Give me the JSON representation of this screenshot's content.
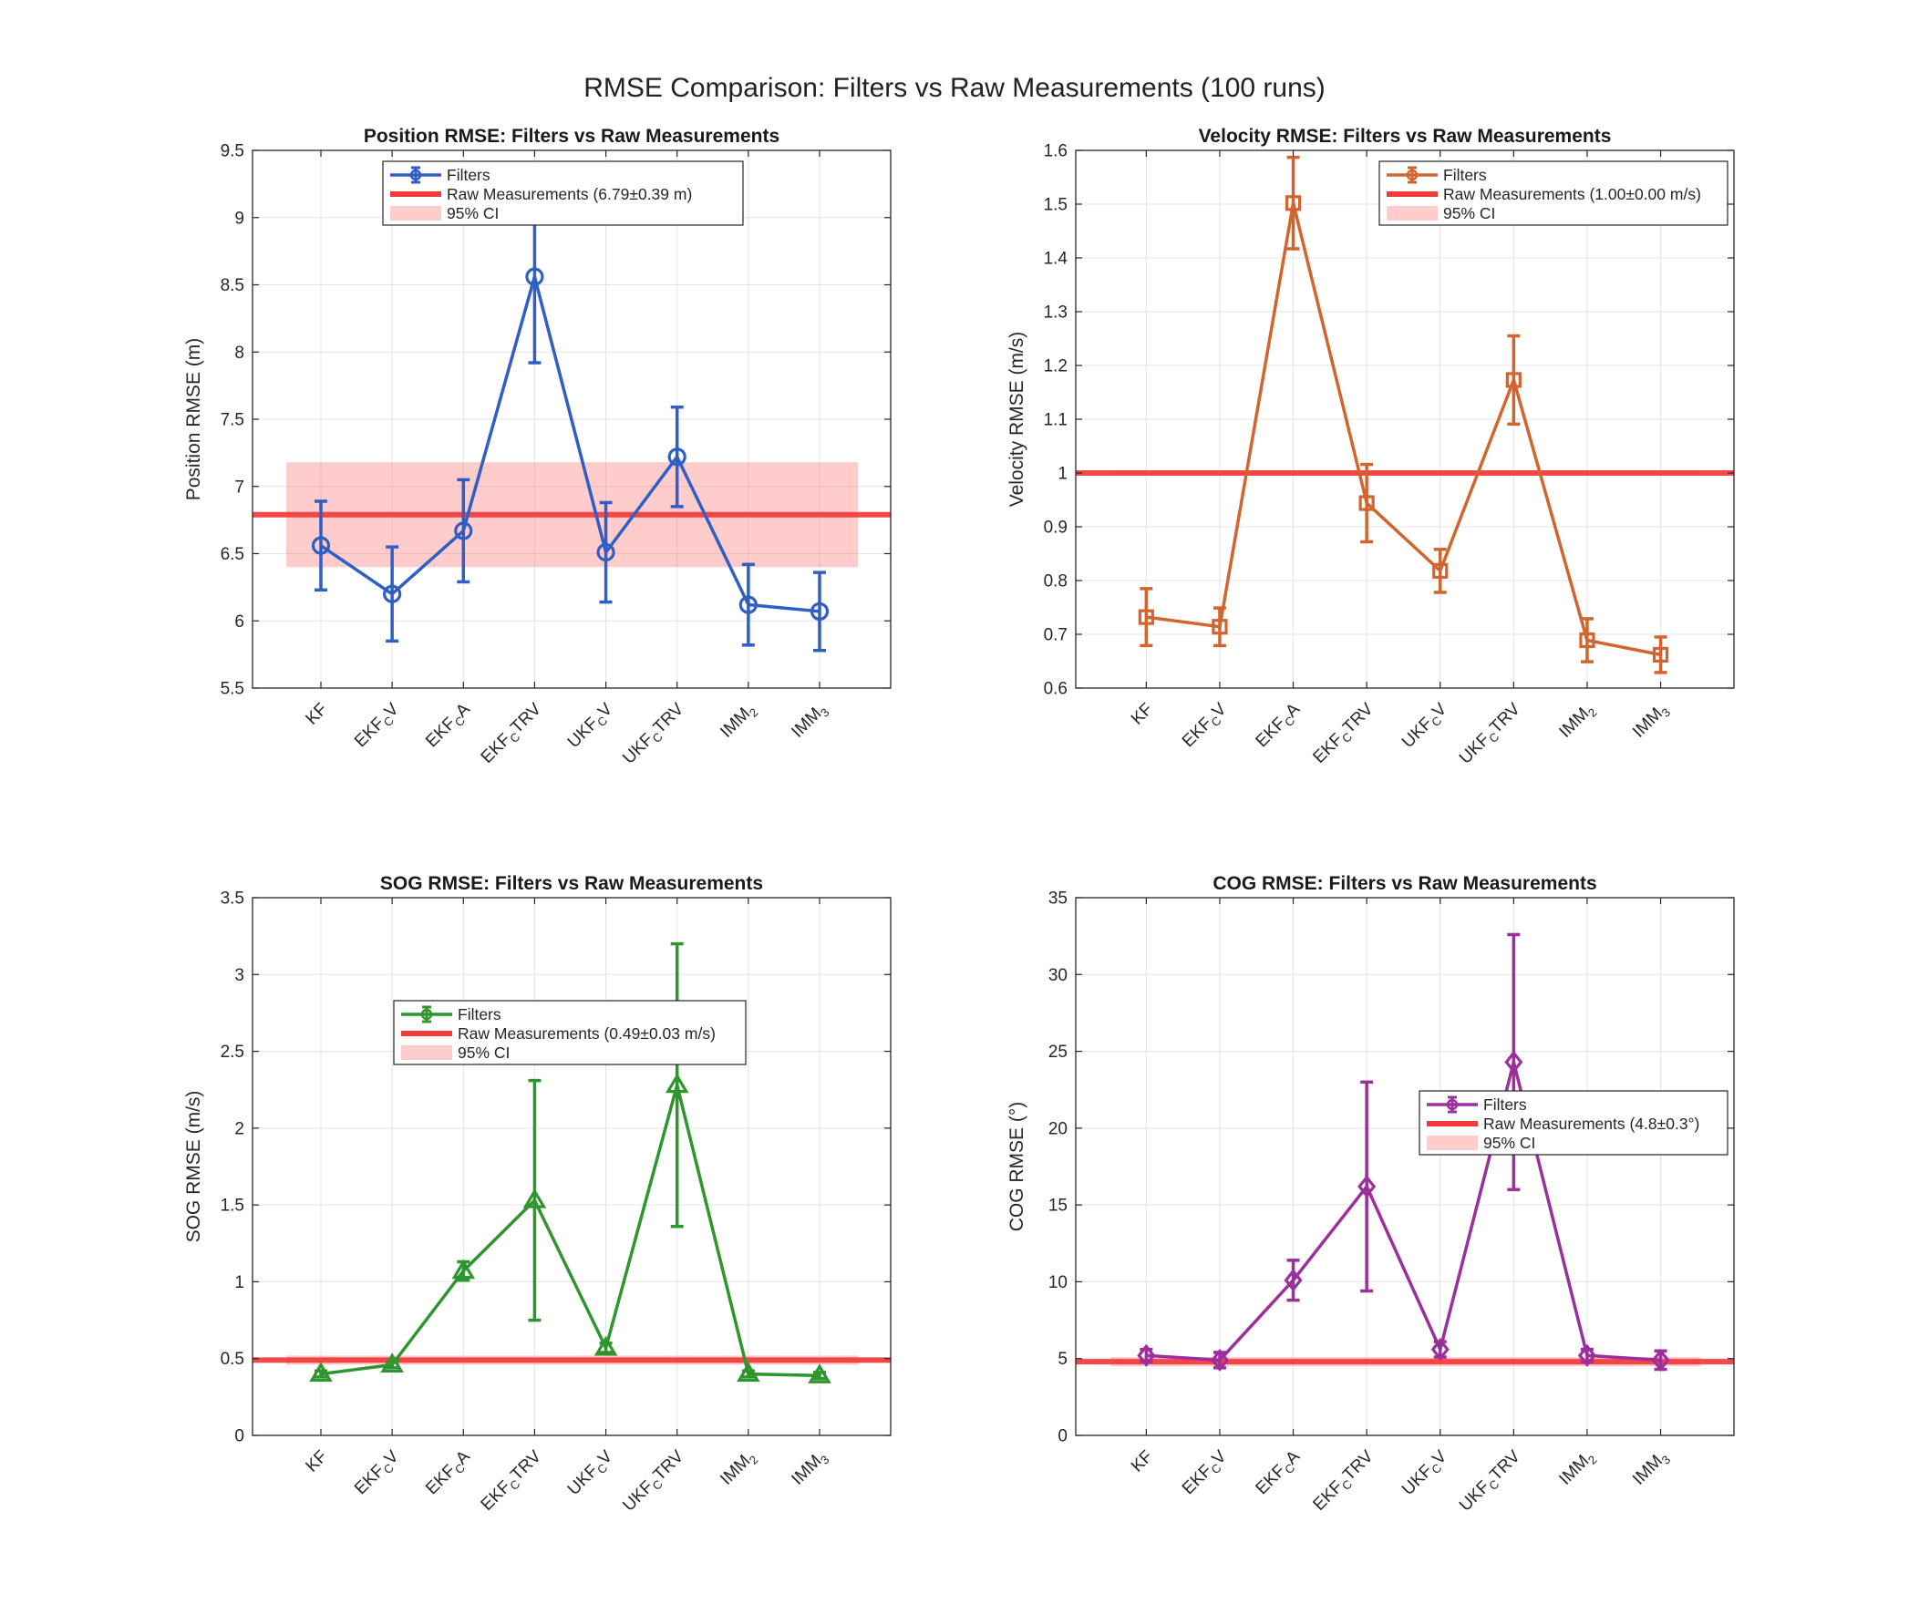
{
  "figure": {
    "title": "RMSE Comparison: Filters vs Raw Measurements (100 runs)"
  },
  "chart_data": [
    {
      "type": "line",
      "title": "Position RMSE: Filters vs Raw Measurements",
      "xlabel": "",
      "ylabel": "Position RMSE (m)",
      "categories": [
        {
          "base": "KF",
          "sub": "",
          "post": ""
        },
        {
          "base": "EKF",
          "sub": "C",
          "post": "V"
        },
        {
          "base": "EKF",
          "sub": "C",
          "post": "A"
        },
        {
          "base": "EKF",
          "sub": "C",
          "post": "TRV"
        },
        {
          "base": "UKF",
          "sub": "C",
          "post": "V"
        },
        {
          "base": "UKF",
          "sub": "C",
          "post": "TRV"
        },
        {
          "base": "IMM",
          "sub": "2",
          "post": ""
        },
        {
          "base": "IMM",
          "sub": "3",
          "post": ""
        }
      ],
      "ylim": [
        5.5,
        9.5
      ],
      "yticks": [
        5.5,
        6,
        6.5,
        7,
        7.5,
        8,
        8.5,
        9,
        9.5
      ],
      "ytick_labels": [
        "5.5",
        "6",
        "6.5",
        "7",
        "7.5",
        "8",
        "8.5",
        "9",
        "9.5"
      ],
      "grid": true,
      "legend_position": "top-center",
      "marker": "circle",
      "color": "#2f5fc4",
      "series": [
        {
          "name": "Filters",
          "values": [
            6.56,
            6.2,
            6.67,
            8.56,
            6.51,
            7.22,
            6.12,
            6.07
          ],
          "errors": [
            0.33,
            0.35,
            0.38,
            0.64,
            0.37,
            0.37,
            0.3,
            0.29
          ]
        }
      ],
      "raw": {
        "value": 6.79,
        "ci_low": 6.4,
        "ci_high": 7.18
      },
      "legend": [
        "Filters",
        "Raw Measurements (6.79±0.39 m)",
        "95% CI"
      ]
    },
    {
      "type": "line",
      "title": "Velocity RMSE: Filters vs Raw Measurements",
      "xlabel": "",
      "ylabel": "Velocity RMSE (m/s)",
      "categories": [
        {
          "base": "KF",
          "sub": "",
          "post": ""
        },
        {
          "base": "EKF",
          "sub": "C",
          "post": "V"
        },
        {
          "base": "EKF",
          "sub": "C",
          "post": "A"
        },
        {
          "base": "EKF",
          "sub": "C",
          "post": "TRV"
        },
        {
          "base": "UKF",
          "sub": "C",
          "post": "V"
        },
        {
          "base": "UKF",
          "sub": "C",
          "post": "TRV"
        },
        {
          "base": "IMM",
          "sub": "2",
          "post": ""
        },
        {
          "base": "IMM",
          "sub": "3",
          "post": ""
        }
      ],
      "ylim": [
        0.6,
        1.6
      ],
      "yticks": [
        0.6,
        0.7,
        0.8,
        0.9,
        1.0,
        1.1,
        1.2,
        1.3,
        1.4,
        1.5,
        1.6
      ],
      "ytick_labels": [
        "0.6",
        "0.7",
        "0.8",
        "0.9",
        "1",
        "1.1",
        "1.2",
        "1.3",
        "1.4",
        "1.5",
        "1.6"
      ],
      "grid": true,
      "legend_position": "top-right",
      "marker": "square",
      "color": "#d0652f",
      "series": [
        {
          "name": "Filters",
          "values": [
            0.732,
            0.714,
            1.502,
            0.944,
            0.818,
            1.173,
            0.689,
            0.662
          ],
          "errors": [
            0.053,
            0.035,
            0.085,
            0.072,
            0.04,
            0.082,
            0.04,
            0.033
          ]
        }
      ],
      "raw": {
        "value": 1.0,
        "ci_low": 0.998,
        "ci_high": 1.002
      },
      "legend": [
        "Filters",
        "Raw Measurements (1.00±0.00 m/s)",
        "95% CI"
      ]
    },
    {
      "type": "line",
      "title": "SOG RMSE: Filters vs Raw Measurements",
      "xlabel": "",
      "ylabel": "SOG RMSE (m/s)",
      "categories": [
        {
          "base": "KF",
          "sub": "",
          "post": ""
        },
        {
          "base": "EKF",
          "sub": "C",
          "post": "V"
        },
        {
          "base": "EKF",
          "sub": "C",
          "post": "A"
        },
        {
          "base": "EKF",
          "sub": "C",
          "post": "TRV"
        },
        {
          "base": "UKF",
          "sub": "C",
          "post": "V"
        },
        {
          "base": "UKF",
          "sub": "C",
          "post": "TRV"
        },
        {
          "base": "IMM",
          "sub": "2",
          "post": ""
        },
        {
          "base": "IMM",
          "sub": "3",
          "post": ""
        }
      ],
      "ylim": [
        0,
        3.5
      ],
      "yticks": [
        0,
        0.5,
        1,
        1.5,
        2,
        2.5,
        3,
        3.5
      ],
      "ytick_labels": [
        "0",
        "0.5",
        "1",
        "1.5",
        "2",
        "2.5",
        "3",
        "3.5"
      ],
      "grid": true,
      "legend_position": "center",
      "marker": "triangle",
      "color": "#2f952f",
      "series": [
        {
          "name": "Filters",
          "values": [
            0.4,
            0.46,
            1.07,
            1.53,
            0.57,
            2.28,
            0.4,
            0.39
          ],
          "errors": [
            0.02,
            0.02,
            0.06,
            0.78,
            0.03,
            0.92,
            0.02,
            0.02
          ]
        }
      ],
      "raw": {
        "value": 0.49,
        "ci_low": 0.46,
        "ci_high": 0.52
      },
      "legend": [
        "Filters",
        "Raw Measurements (0.49±0.03 m/s)",
        "95% CI"
      ]
    },
    {
      "type": "line",
      "title": "COG RMSE: Filters vs Raw Measurements",
      "xlabel": "",
      "ylabel": "COG RMSE (°)",
      "categories": [
        {
          "base": "KF",
          "sub": "",
          "post": ""
        },
        {
          "base": "EKF",
          "sub": "C",
          "post": "V"
        },
        {
          "base": "EKF",
          "sub": "C",
          "post": "A"
        },
        {
          "base": "EKF",
          "sub": "C",
          "post": "TRV"
        },
        {
          "base": "UKF",
          "sub": "C",
          "post": "V"
        },
        {
          "base": "UKF",
          "sub": "C",
          "post": "TRV"
        },
        {
          "base": "IMM",
          "sub": "2",
          "post": ""
        },
        {
          "base": "IMM",
          "sub": "3",
          "post": ""
        }
      ],
      "ylim": [
        0,
        35
      ],
      "yticks": [
        0,
        5,
        10,
        15,
        20,
        25,
        30,
        35
      ],
      "ytick_labels": [
        "0",
        "5",
        "10",
        "15",
        "20",
        "25",
        "30",
        "35"
      ],
      "grid": true,
      "legend_position": "center-right",
      "marker": "diamond",
      "color": "#9b2f9b",
      "series": [
        {
          "name": "Filters",
          "values": [
            5.2,
            4.9,
            10.1,
            16.2,
            5.6,
            24.3,
            5.2,
            4.9
          ],
          "errors": [
            0.4,
            0.5,
            1.3,
            6.8,
            0.5,
            8.3,
            0.4,
            0.6
          ]
        }
      ],
      "raw": {
        "value": 4.8,
        "ci_low": 4.5,
        "ci_high": 5.1
      },
      "legend": [
        "Filters",
        "Raw Measurements (4.8±0.3°)",
        "95% CI"
      ]
    }
  ]
}
